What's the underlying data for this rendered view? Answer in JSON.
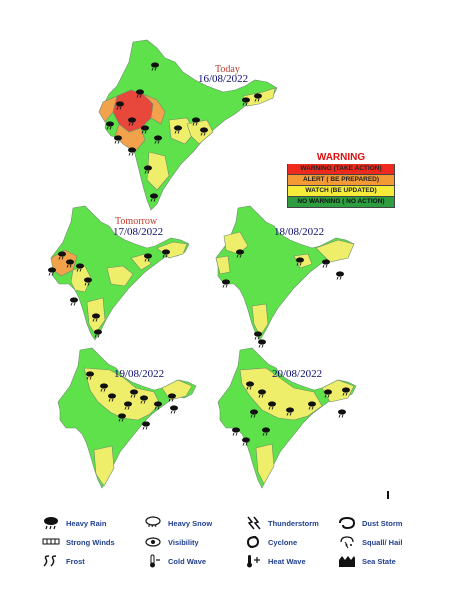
{
  "maps": [
    {
      "date": "16/08/2022",
      "caption": "Today"
    },
    {
      "date": "17/08/2022",
      "caption": "Tomorrow"
    },
    {
      "date": "18/08/2022",
      "caption": ""
    },
    {
      "date": "19/08/2022",
      "caption": ""
    },
    {
      "date": "20/08/2022",
      "caption": ""
    }
  ],
  "warning_legend": {
    "title": "WARNING",
    "rows": [
      {
        "label": "WARNING (TAKE ACTION)",
        "color": "#ee2a1f"
      },
      {
        "label": "ALERT ( BE PREPARED)",
        "color": "#f39a34"
      },
      {
        "label": "WATCH (BE UPDATED)",
        "color": "#f5ec3a"
      },
      {
        "label": "NO WARNING ( NO ACTION)",
        "color": "#2e9d3f"
      }
    ]
  },
  "symbol_legend": [
    {
      "label": "Heavy Rain",
      "icon": "heavy-rain-icon"
    },
    {
      "label": "Heavy Snow",
      "icon": "heavy-snow-icon"
    },
    {
      "label": "Thunderstorm",
      "icon": "thunderstorm-icon"
    },
    {
      "label": "Dust Storm",
      "icon": "dust-storm-icon"
    },
    {
      "label": "Strong Winds",
      "icon": "strong-winds-icon"
    },
    {
      "label": "Visibility",
      "icon": "visibility-icon"
    },
    {
      "label": "Cyclone",
      "icon": "cyclone-icon"
    },
    {
      "label": "Squall/ Hail",
      "icon": "squall-hail-icon"
    },
    {
      "label": "Frost",
      "icon": "frost-icon"
    },
    {
      "label": "Cold Wave",
      "icon": "cold-wave-icon"
    },
    {
      "label": "Heat Wave",
      "icon": "heat-wave-icon"
    },
    {
      "label": "Sea State",
      "icon": "sea-state-icon"
    }
  ],
  "colors": {
    "green": "#5ee14a",
    "yellow": "#eeee6a",
    "orange": "#f1a24a",
    "red": "#e8473c",
    "border": "#7a7a7a"
  }
}
